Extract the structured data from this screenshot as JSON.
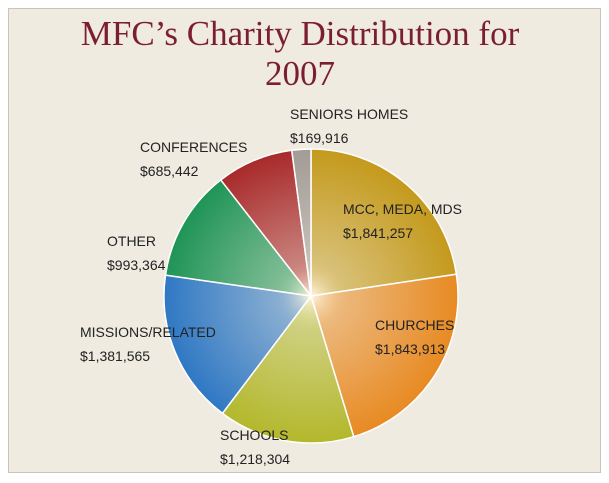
{
  "chart_data": {
    "type": "pie",
    "title": "MFC’s Charity Distribution for 2007",
    "categories": [
      "MCC, MEDA, MDS",
      "CHURCHES",
      "SCHOOLS",
      "MISSIONS/RELATED",
      "OTHER",
      "CONFERENCES",
      "SENIORS HOMES"
    ],
    "values": [
      1841257,
      1843913,
      1218304,
      1381565,
      993364,
      685442,
      169916
    ],
    "value_labels": [
      "$1,841,257",
      "$1,843,913",
      "$1,218,304",
      "$1,381,565",
      "$993,364",
      "$685,442",
      "$169,916"
    ],
    "colors": [
      "#c49a1c",
      "#e88a22",
      "#b3b82c",
      "#2f78c4",
      "#1f9456",
      "#a82a2a",
      "#a39b95"
    ]
  }
}
